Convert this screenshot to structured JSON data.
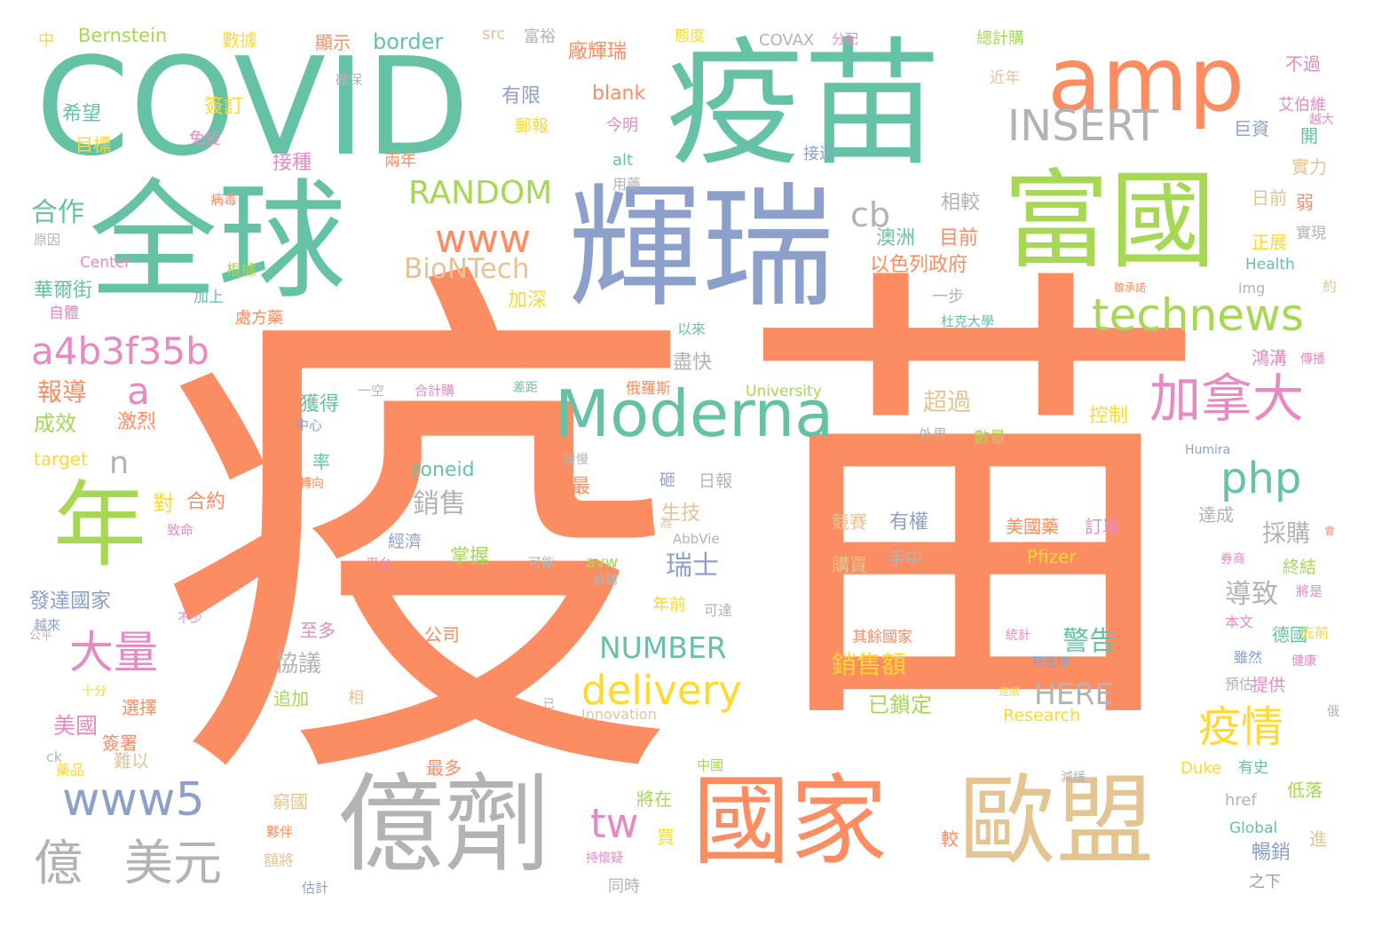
{
  "colors": {
    "orange": "#fc8d62",
    "teal": "#66c2a5",
    "blue": "#8da0cb",
    "pink": "#e78ac3",
    "green": "#a6d854",
    "yellow": "#ffd92f",
    "tan": "#e5c494",
    "gray": "#b3b3b3"
  },
  "words": [
    {
      "text": "疫",
      "color": "orange"
    },
    {
      "text": "苗",
      "color": "orange"
    },
    {
      "text": "COVID",
      "color": "teal"
    },
    {
      "text": "疫苗",
      "color": "teal"
    },
    {
      "text": "amp",
      "color": "orange"
    },
    {
      "text": "全球",
      "color": "teal"
    },
    {
      "text": "輝瑞",
      "color": "blue"
    },
    {
      "text": "富國",
      "color": "green"
    },
    {
      "text": "INSERT",
      "color": "gray"
    },
    {
      "text": "億劑",
      "color": "gray"
    },
    {
      "text": "國家",
      "color": "orange"
    },
    {
      "text": "歐盟",
      "color": "tan"
    },
    {
      "text": "年",
      "color": "green"
    },
    {
      "text": "Moderna",
      "color": "teal"
    },
    {
      "text": "technews",
      "color": "green"
    },
    {
      "text": "加拿大",
      "color": "pink"
    },
    {
      "text": "www",
      "color": "orange"
    },
    {
      "text": "RANDOM",
      "color": "green"
    },
    {
      "text": "a4b3f35b",
      "color": "pink"
    },
    {
      "text": "www5",
      "color": "blue"
    },
    {
      "text": "億",
      "color": "gray"
    },
    {
      "text": "美元",
      "color": "gray"
    },
    {
      "text": "delivery",
      "color": "yellow"
    },
    {
      "text": "大量",
      "color": "pink"
    },
    {
      "text": "疫情",
      "color": "yellow"
    },
    {
      "text": "php",
      "color": "teal"
    },
    {
      "text": "tw",
      "color": "pink"
    },
    {
      "text": "cb",
      "color": "gray"
    },
    {
      "text": "BioNTech",
      "color": "tan"
    },
    {
      "text": "a",
      "color": "pink"
    },
    {
      "text": "n",
      "color": "gray"
    },
    {
      "text": "NUMBER",
      "color": "teal"
    },
    {
      "text": "HERE",
      "color": "gray"
    },
    {
      "text": "合作",
      "color": "teal"
    },
    {
      "text": "報導",
      "color": "orange"
    },
    {
      "text": "銷售",
      "color": "gray"
    },
    {
      "text": "瑞士",
      "color": "blue"
    },
    {
      "text": "採購",
      "color": "gray"
    },
    {
      "text": "導致",
      "color": "gray"
    },
    {
      "text": "警告",
      "color": "teal"
    },
    {
      "text": "銷售額",
      "color": "yellow"
    },
    {
      "text": "協議",
      "color": "gray"
    },
    {
      "text": "美國",
      "color": "pink"
    },
    {
      "text": "超過",
      "color": "tan"
    },
    {
      "text": "暢銷",
      "color": "blue"
    },
    {
      "text": "希望",
      "color": "teal"
    },
    {
      "text": "簽訂",
      "color": "yellow"
    },
    {
      "text": "接種",
      "color": "pink"
    },
    {
      "text": "廠輝瑞",
      "color": "orange"
    },
    {
      "text": "有限",
      "color": "blue"
    },
    {
      "text": "border",
      "color": "teal"
    },
    {
      "text": "Bernstein",
      "color": "green"
    },
    {
      "text": "數據",
      "color": "yellow"
    },
    {
      "text": "顯示",
      "color": "orange"
    },
    {
      "text": "src",
      "color": "tan"
    },
    {
      "text": "富裕",
      "color": "gray"
    },
    {
      "text": "態度",
      "color": "yellow"
    },
    {
      "text": "COVAX",
      "color": "gray"
    },
    {
      "text": "分配",
      "color": "pink"
    },
    {
      "text": "總計購",
      "color": "green"
    },
    {
      "text": "不過",
      "color": "pink"
    },
    {
      "text": "艾伯維",
      "color": "pink"
    },
    {
      "text": "越大",
      "color": "pink"
    },
    {
      "text": "巨資",
      "color": "blue"
    },
    {
      "text": "開",
      "color": "teal"
    },
    {
      "text": "實力",
      "color": "tan"
    },
    {
      "text": "弱",
      "color": "orange"
    },
    {
      "text": "日前",
      "color": "tan"
    },
    {
      "text": "實現",
      "color": "gray"
    },
    {
      "text": "正展",
      "color": "yellow"
    },
    {
      "text": "Health",
      "color": "teal"
    },
    {
      "text": "約",
      "color": "tan"
    },
    {
      "text": "雖承諾",
      "color": "orange"
    },
    {
      "text": "鴻溝",
      "color": "pink"
    },
    {
      "text": "傳播",
      "color": "pink"
    },
    {
      "text": "控制",
      "color": "yellow"
    },
    {
      "text": "Humira",
      "color": "blue"
    },
    {
      "text": "達成",
      "color": "gray"
    },
    {
      "text": "會",
      "color": "orange"
    },
    {
      "text": "美國藥",
      "color": "orange"
    },
    {
      "text": "訂單",
      "color": "pink"
    },
    {
      "text": "Pfizer",
      "color": "yellow"
    },
    {
      "text": "創新",
      "color": "orange"
    },
    {
      "text": "券商",
      "color": "pink"
    },
    {
      "text": "終結",
      "color": "green"
    },
    {
      "text": "將是",
      "color": "pink"
    },
    {
      "text": "本文",
      "color": "pink"
    },
    {
      "text": "德國",
      "color": "teal"
    },
    {
      "text": "先前",
      "color": "yellow"
    },
    {
      "text": "雖然",
      "color": "blue"
    },
    {
      "text": "健康",
      "color": "pink"
    },
    {
      "text": "預估",
      "color": "gray"
    },
    {
      "text": "提供",
      "color": "pink"
    },
    {
      "text": "俄",
      "color": "gray"
    },
    {
      "text": "Research",
      "color": "yellow"
    },
    {
      "text": "Duke",
      "color": "yellow"
    },
    {
      "text": "有史",
      "color": "teal"
    },
    {
      "text": "減緩",
      "color": "gray"
    },
    {
      "text": "低落",
      "color": "green"
    },
    {
      "text": "href",
      "color": "gray"
    },
    {
      "text": "Global",
      "color": "teal"
    },
    {
      "text": "進",
      "color": "tan"
    },
    {
      "text": "之下",
      "color": "blue"
    },
    {
      "text": "競賽",
      "color": "tan"
    },
    {
      "text": "有權",
      "color": "blue"
    },
    {
      "text": "購買",
      "color": "tan"
    },
    {
      "text": "手中",
      "color": "gray"
    },
    {
      "text": "其餘國家",
      "color": "orange"
    },
    {
      "text": "統計",
      "color": "pink"
    },
    {
      "text": "華盛頓",
      "color": "blue"
    },
    {
      "text": "進展",
      "color": "yellow"
    },
    {
      "text": "已鎖定",
      "color": "green"
    },
    {
      "text": "較",
      "color": "orange"
    },
    {
      "text": "zoneid",
      "color": "teal"
    },
    {
      "text": "經濟",
      "color": "blue"
    },
    {
      "text": "掌握",
      "color": "green"
    },
    {
      "text": "平台",
      "color": "pink"
    },
    {
      "text": "可能",
      "color": "gray"
    },
    {
      "text": "avw",
      "color": "green"
    },
    {
      "text": "AbbVie",
      "color": "gray"
    },
    {
      "text": "年前",
      "color": "yellow"
    },
    {
      "text": "可達",
      "color": "gray"
    },
    {
      "text": "為",
      "color": "tan"
    },
    {
      "text": "至多",
      "color": "pink"
    },
    {
      "text": "公司",
      "color": "orange"
    },
    {
      "text": "Innovation",
      "color": "tan"
    },
    {
      "text": "已",
      "color": "gray"
    },
    {
      "text": "生技",
      "color": "tan"
    },
    {
      "text": "砸",
      "color": "blue"
    },
    {
      "text": "日報",
      "color": "gray"
    },
    {
      "text": "最",
      "color": "orange"
    },
    {
      "text": "外界",
      "color": "gray"
    },
    {
      "text": "數量",
      "color": "green"
    },
    {
      "text": "緩慢",
      "color": "gray"
    },
    {
      "text": "University",
      "color": "green"
    },
    {
      "text": "俄羅斯",
      "color": "orange"
    },
    {
      "text": "差距",
      "color": "teal"
    },
    {
      "text": "合計購",
      "color": "pink"
    },
    {
      "text": "一空",
      "color": "gray"
    },
    {
      "text": "獲得",
      "color": "teal"
    },
    {
      "text": "中心",
      "color": "blue"
    },
    {
      "text": "率",
      "color": "teal"
    },
    {
      "text": "轉向",
      "color": "orange"
    },
    {
      "text": "盡快",
      "color": "gray"
    },
    {
      "text": "以來",
      "color": "teal"
    },
    {
      "text": "一步",
      "color": "gray"
    },
    {
      "text": "杜克大學",
      "color": "teal"
    },
    {
      "text": "img",
      "color": "gray"
    },
    {
      "text": "以色列政府",
      "color": "orange"
    },
    {
      "text": "加深",
      "color": "yellow"
    },
    {
      "text": "澳洲",
      "color": "teal"
    },
    {
      "text": "目前",
      "color": "orange"
    },
    {
      "text": "相較",
      "color": "gray"
    },
    {
      "text": "接近",
      "color": "blue"
    },
    {
      "text": "今明",
      "color": "pink"
    },
    {
      "text": "alt",
      "color": "teal"
    },
    {
      "text": "用藥",
      "color": "gray"
    },
    {
      "text": "blank",
      "color": "orange"
    },
    {
      "text": "郵報",
      "color": "yellow"
    },
    {
      "text": "兩年",
      "color": "orange"
    },
    {
      "text": "近年",
      "color": "tan"
    },
    {
      "text": "確保",
      "color": "gray"
    },
    {
      "text": "目標",
      "color": "yellow"
    },
    {
      "text": "免疫",
      "color": "pink"
    },
    {
      "text": "病毒",
      "color": "orange"
    },
    {
      "text": "原因",
      "color": "gray"
    },
    {
      "text": "Center",
      "color": "pink"
    },
    {
      "text": "根據",
      "color": "green"
    },
    {
      "text": "華爾街",
      "color": "teal"
    },
    {
      "text": "加上",
      "color": "teal"
    },
    {
      "text": "自體",
      "color": "pink"
    },
    {
      "text": "處方藥",
      "color": "orange"
    },
    {
      "text": "中",
      "color": "yellow"
    },
    {
      "text": "成效",
      "color": "green"
    },
    {
      "text": "激烈",
      "color": "orange"
    },
    {
      "text": "target",
      "color": "yellow"
    },
    {
      "text": "對",
      "color": "yellow"
    },
    {
      "text": "合約",
      "color": "orange"
    },
    {
      "text": "致命",
      "color": "pink"
    },
    {
      "text": "發達國家",
      "color": "blue"
    },
    {
      "text": "不少",
      "color": "pink"
    },
    {
      "text": "越來",
      "color": "blue"
    },
    {
      "text": "公平",
      "color": "gray"
    },
    {
      "text": "十分",
      "color": "yellow"
    },
    {
      "text": "選擇",
      "color": "orange"
    },
    {
      "text": "難以",
      "color": "tan"
    },
    {
      "text": "ck",
      "color": "gray"
    },
    {
      "text": "藥品",
      "color": "yellow"
    },
    {
      "text": "追加",
      "color": "green"
    },
    {
      "text": "相",
      "color": "tan"
    },
    {
      "text": "最多",
      "color": "orange"
    },
    {
      "text": "簽署",
      "color": "orange"
    },
    {
      "text": "中國",
      "color": "green"
    },
    {
      "text": "窮國",
      "color": "tan"
    },
    {
      "text": "夥伴",
      "color": "orange"
    },
    {
      "text": "額將",
      "color": "tan"
    },
    {
      "text": "估計",
      "color": "blue"
    },
    {
      "text": "持懷疑",
      "color": "pink"
    },
    {
      "text": "同時",
      "color": "gray"
    },
    {
      "text": "將在",
      "color": "green"
    },
    {
      "text": "買",
      "color": "yellow"
    },
    {
      "text": "搶購",
      "color": "gray"
    }
  ]
}
